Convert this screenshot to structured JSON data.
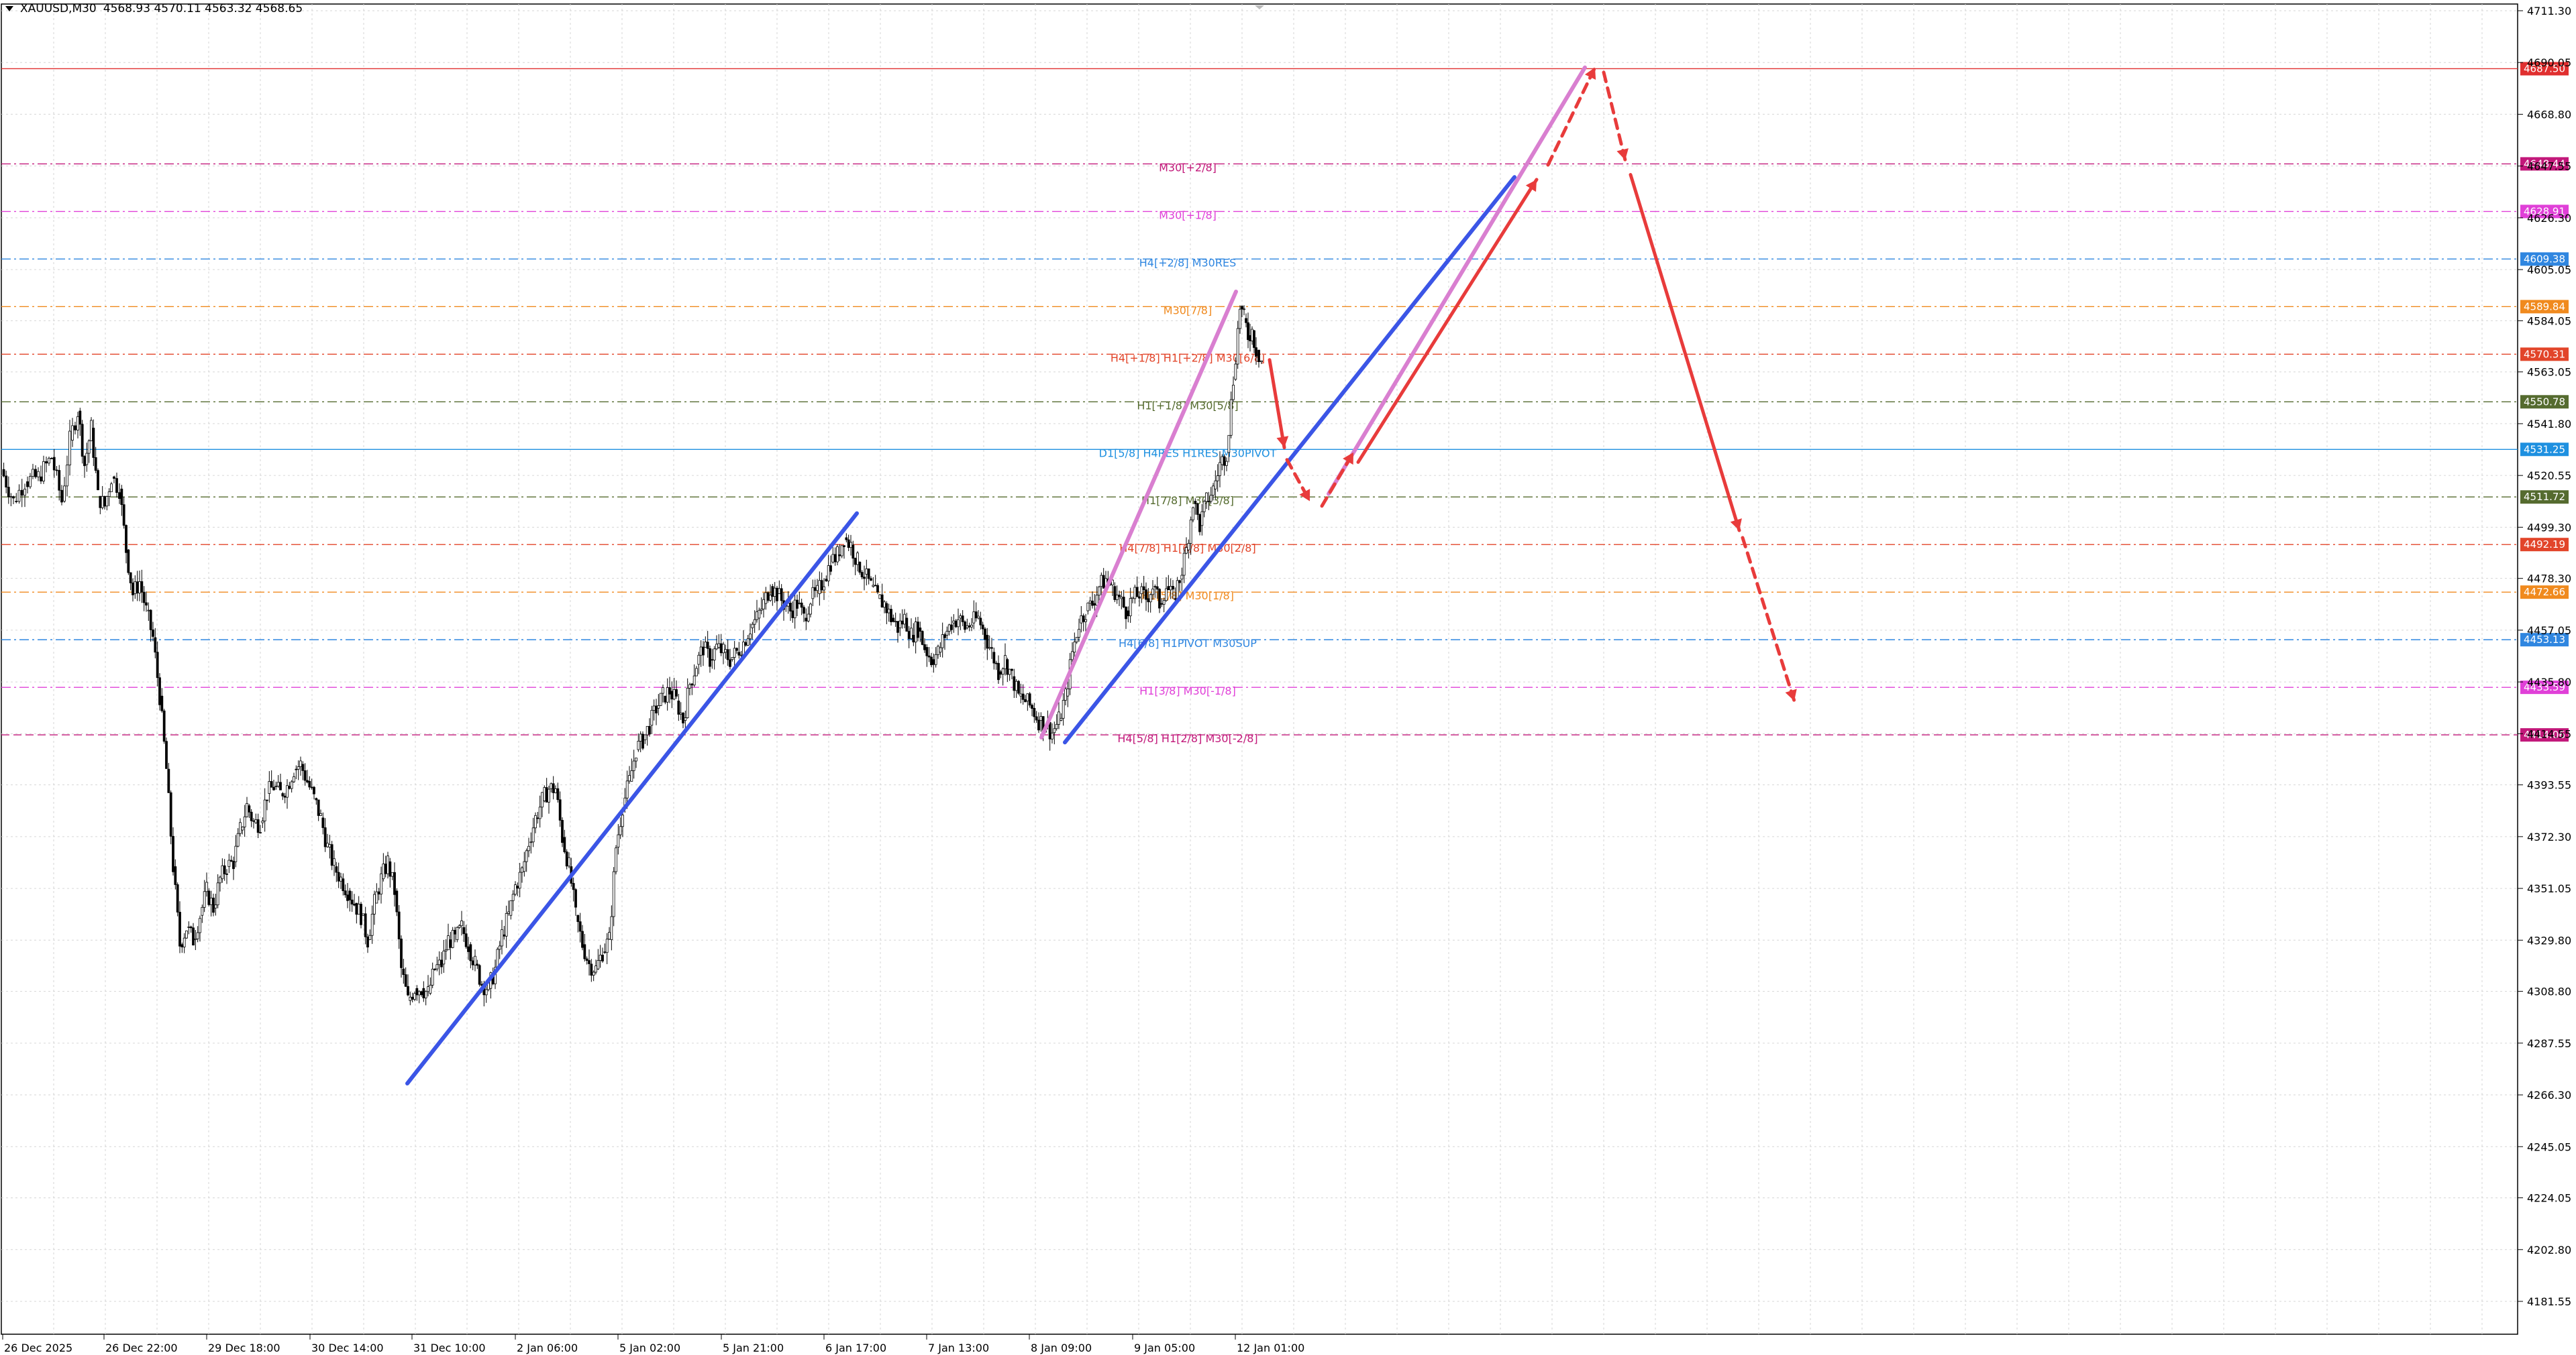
{
  "window": {
    "symbol_info": "XAUUSD,M30",
    "ohlc": "4568.93 4570.11 4563.32 4568.65"
  },
  "colors": {
    "background": "#ffffff",
    "grid": "#d6d6d6",
    "candle": "#000000",
    "trend_blue": "#3b55e6",
    "trend_pink": "#d97fd0",
    "arrow_red": "#e83b3b"
  },
  "chart_data": {
    "type": "candlestick",
    "title": "XAUUSD,M30",
    "ylim": [
      4170,
      4716
    ],
    "price_ticks": [
      "4711.30",
      "4690.05",
      "4668.80",
      "4647.55",
      "4626.30",
      "4605.05",
      "4584.05",
      "4563.05",
      "4541.80",
      "4520.55",
      "4499.30",
      "4478.30",
      "4457.05",
      "4435.80",
      "4414.55",
      "4393.55",
      "4372.30",
      "4351.05",
      "4329.80",
      "4308.80",
      "4287.55",
      "4266.30",
      "4245.05",
      "4224.05",
      "4202.80",
      "4181.55"
    ],
    "time_labels": [
      "26 Dec 2025",
      "26 Dec 22:00",
      "29 Dec 18:00",
      "30 Dec 14:00",
      "31 Dec 10:00",
      "2 Jan 06:00",
      "5 Jan 02:00",
      "5 Jan 21:00",
      "6 Jan 17:00",
      "7 Jan 13:00",
      "8 Jan 09:00",
      "9 Jan 05:00",
      "12 Jan 01:00"
    ],
    "levels": [
      {
        "price": 4687.5,
        "tag": "4687.50",
        "label": "",
        "color": "#e02f2f",
        "style": "solid"
      },
      {
        "price": 4648.44,
        "tag": "4648.44",
        "label": "M30[+2/8]",
        "color": "#c2187a",
        "style": "dashdot"
      },
      {
        "price": 4628.91,
        "tag": "4628.91",
        "label": "M30[+1/8]",
        "color": "#e040d8",
        "style": "dashdot"
      },
      {
        "price": 4609.38,
        "tag": "4609.38",
        "label": "H4[+2/8] M30RES",
        "color": "#2f86e0",
        "style": "dashdot"
      },
      {
        "price": 4589.84,
        "tag": "4589.84",
        "label": "M30[7/8]",
        "color": "#f08a1e",
        "style": "dashdot"
      },
      {
        "price": 4570.31,
        "tag": "4570.31",
        "label": "H4[+1/8] H1[+2/8] M30[6/8]",
        "color": "#e2452a",
        "style": "dashdot"
      },
      {
        "price": 4550.78,
        "tag": "4550.78",
        "label": "H1[+1/8] M30[5/8]",
        "color": "#556b2f",
        "style": "dashdot"
      },
      {
        "price": 4531.25,
        "tag": "4531.25",
        "label": "D1[5/8] H4RES H1RES M30PIVOT",
        "color": "#1e90e0",
        "style": "solid"
      },
      {
        "price": 4511.72,
        "tag": "4511.72",
        "label": "H1[7/8] M30[3/8]",
        "color": "#556b2f",
        "style": "dashdot"
      },
      {
        "price": 4492.19,
        "tag": "4492.19",
        "label": "H4[7/8] H1[6/8] M30[2/8]",
        "color": "#e2452a",
        "style": "dashdot"
      },
      {
        "price": 4472.66,
        "tag": "4472.66",
        "label": "H1[5/8] M30[1/8]",
        "color": "#f08a1e",
        "style": "dashdot"
      },
      {
        "price": 4453.13,
        "tag": "4453.13",
        "label": "H4[6/8] H1PIVOT M30SUP",
        "color": "#2f86e0",
        "style": "dashdot"
      },
      {
        "price": 4433.59,
        "tag": "4433.59",
        "label": "H1[3/8] M30[-1/8]",
        "color": "#e040d8",
        "style": "dashdot"
      },
      {
        "price": 4414.06,
        "tag": "4414.06",
        "label": "H4[5/8] H1[2/8] M30[-2/8]",
        "color": "#c2187a",
        "style": "dashed"
      }
    ],
    "price_path": [
      [
        0,
        4523
      ],
      [
        18,
        4510
      ],
      [
        35,
        4518
      ],
      [
        55,
        4520
      ],
      [
        75,
        4528
      ],
      [
        90,
        4510
      ],
      [
        102,
        4535
      ],
      [
        114,
        4547
      ],
      [
        124,
        4525
      ],
      [
        134,
        4540
      ],
      [
        144,
        4512
      ],
      [
        154,
        4508
      ],
      [
        164,
        4520
      ],
      [
        176,
        4515
      ],
      [
        186,
        4490
      ],
      [
        196,
        4472
      ],
      [
        206,
        4477
      ],
      [
        216,
        4465
      ],
      [
        226,
        4454
      ],
      [
        236,
        4430
      ],
      [
        246,
        4400
      ],
      [
        256,
        4360
      ],
      [
        266,
        4328
      ],
      [
        276,
        4335
      ],
      [
        286,
        4330
      ],
      [
        296,
        4340
      ],
      [
        306,
        4350
      ],
      [
        316,
        4343
      ],
      [
        326,
        4355
      ],
      [
        336,
        4360
      ],
      [
        346,
        4362
      ],
      [
        356,
        4375
      ],
      [
        366,
        4385
      ],
      [
        376,
        4378
      ],
      [
        386,
        4378
      ],
      [
        396,
        4390
      ],
      [
        406,
        4393
      ],
      [
        416,
        4390
      ],
      [
        426,
        4393
      ],
      [
        436,
        4400
      ],
      [
        446,
        4402
      ],
      [
        456,
        4395
      ],
      [
        466,
        4388
      ],
      [
        476,
        4380
      ],
      [
        486,
        4368
      ],
      [
        496,
        4360
      ],
      [
        506,
        4355
      ],
      [
        516,
        4350
      ],
      [
        526,
        4345
      ],
      [
        536,
        4340
      ],
      [
        546,
        4330
      ],
      [
        556,
        4345
      ],
      [
        566,
        4355
      ],
      [
        576,
        4362
      ],
      [
        586,
        4350
      ],
      [
        596,
        4318
      ],
      [
        606,
        4305
      ],
      [
        616,
        4310
      ],
      [
        626,
        4310
      ],
      [
        636,
        4308
      ],
      [
        646,
        4318
      ],
      [
        656,
        4320
      ],
      [
        666,
        4330
      ],
      [
        676,
        4330
      ],
      [
        686,
        4335
      ],
      [
        696,
        4328
      ],
      [
        706,
        4320
      ],
      [
        716,
        4312
      ],
      [
        726,
        4310
      ],
      [
        736,
        4318
      ],
      [
        746,
        4332
      ],
      [
        756,
        4340
      ],
      [
        766,
        4352
      ],
      [
        776,
        4358
      ],
      [
        786,
        4370
      ],
      [
        796,
        4380
      ],
      [
        806,
        4387
      ],
      [
        816,
        4392
      ],
      [
        826,
        4392
      ],
      [
        836,
        4372
      ],
      [
        846,
        4360
      ],
      [
        856,
        4340
      ],
      [
        866,
        4328
      ],
      [
        876,
        4320
      ],
      [
        886,
        4318
      ],
      [
        896,
        4325
      ],
      [
        906,
        4330
      ],
      [
        916,
        4368
      ],
      [
        926,
        4385
      ],
      [
        936,
        4395
      ],
      [
        946,
        4408
      ],
      [
        956,
        4412
      ],
      [
        966,
        4418
      ],
      [
        976,
        4425
      ],
      [
        986,
        4430
      ],
      [
        996,
        4432
      ],
      [
        1006,
        4428
      ],
      [
        1016,
        4420
      ],
      [
        1026,
        4435
      ],
      [
        1036,
        4443
      ],
      [
        1046,
        4450
      ],
      [
        1056,
        4445
      ],
      [
        1066,
        4450
      ],
      [
        1076,
        4448
      ],
      [
        1086,
        4445
      ],
      [
        1096,
        4448
      ],
      [
        1106,
        4452
      ],
      [
        1116,
        4458
      ],
      [
        1126,
        4462
      ],
      [
        1136,
        4468
      ],
      [
        1146,
        4475
      ],
      [
        1156,
        4472
      ],
      [
        1166,
        4468
      ],
      [
        1176,
        4465
      ],
      [
        1186,
        4468
      ],
      [
        1196,
        4462
      ],
      [
        1206,
        4470
      ],
      [
        1216,
        4472
      ],
      [
        1226,
        4478
      ],
      [
        1236,
        4485
      ],
      [
        1246,
        4488
      ],
      [
        1256,
        4495
      ],
      [
        1266,
        4492
      ],
      [
        1276,
        4485
      ],
      [
        1286,
        4480
      ],
      [
        1296,
        4475
      ],
      [
        1306,
        4470
      ],
      [
        1316,
        4468
      ],
      [
        1326,
        4462
      ],
      [
        1336,
        4458
      ],
      [
        1346,
        4462
      ],
      [
        1356,
        4455
      ],
      [
        1366,
        4458
      ],
      [
        1376,
        4450
      ],
      [
        1386,
        4445
      ],
      [
        1396,
        4448
      ],
      [
        1406,
        4455
      ],
      [
        1416,
        4460
      ],
      [
        1426,
        4462
      ],
      [
        1436,
        4458
      ],
      [
        1446,
        4460
      ],
      [
        1456,
        4462
      ],
      [
        1466,
        4455
      ],
      [
        1476,
        4448
      ],
      [
        1486,
        4440
      ],
      [
        1496,
        4445
      ],
      [
        1506,
        4438
      ],
      [
        1516,
        4430
      ],
      [
        1526,
        4428
      ],
      [
        1536,
        4425
      ],
      [
        1546,
        4420
      ],
      [
        1556,
        4418
      ],
      [
        1566,
        4415
      ],
      [
        1576,
        4420
      ],
      [
        1586,
        4430
      ],
      [
        1596,
        4448
      ],
      [
        1606,
        4460
      ],
      [
        1616,
        4465
      ],
      [
        1626,
        4468
      ],
      [
        1636,
        4475
      ],
      [
        1646,
        4478
      ],
      [
        1656,
        4475
      ],
      [
        1666,
        4470
      ],
      [
        1676,
        4465
      ],
      [
        1686,
        4470
      ],
      [
        1696,
        4472
      ],
      [
        1706,
        4470
      ],
      [
        1716,
        4475
      ],
      [
        1726,
        4468
      ],
      [
        1736,
        4475
      ],
      [
        1746,
        4470
      ],
      [
        1756,
        4478
      ],
      [
        1766,
        4490
      ],
      [
        1776,
        4510
      ],
      [
        1786,
        4500
      ],
      [
        1796,
        4510
      ],
      [
        1806,
        4515
      ],
      [
        1816,
        4525
      ],
      [
        1826,
        4530
      ],
      [
        1836,
        4560
      ],
      [
        1846,
        4590
      ],
      [
        1852,
        4585
      ],
      [
        1858,
        4578
      ],
      [
        1864,
        4580
      ],
      [
        1870,
        4572
      ],
      [
        1878,
        4568
      ]
    ],
    "trend_lines": [
      {
        "name": "",
        "color": "#3b55e6",
        "dashed": false,
        "arrow": false,
        "points": [
          [
            605,
            4271
          ],
          [
            1275,
            4505
          ]
        ]
      },
      {
        "name": "",
        "color": "#3b55e6",
        "dashed": false,
        "arrow": false,
        "points": [
          [
            1585,
            4411
          ],
          [
            2255,
            4643
          ]
        ]
      },
      {
        "name": "",
        "color": "#d97fd0",
        "dashed": false,
        "arrow": false,
        "points": [
          [
            1550,
            4413
          ],
          [
            1840,
            4596
          ]
        ]
      },
      {
        "name": "",
        "color": "#d97fd0",
        "dashed": false,
        "arrow": false,
        "points": [
          [
            1978,
            4513
          ],
          [
            2360,
            4688
          ]
        ]
      }
    ],
    "forecast_arrows": [
      {
        "color": "#e83b3b",
        "dashed": false,
        "points": [
          [
            1890,
            4568
          ],
          [
            1912,
            4532
          ]
        ]
      },
      {
        "color": "#e83b3b",
        "dashed": true,
        "points": [
          [
            1916,
            4527
          ],
          [
            1950,
            4510
          ]
        ]
      },
      {
        "color": "#e83b3b",
        "dashed": true,
        "points": [
          [
            1968,
            4508
          ],
          [
            2015,
            4530
          ]
        ]
      },
      {
        "color": "#e83b3b",
        "dashed": false,
        "points": [
          [
            2022,
            4526
          ],
          [
            2288,
            4642
          ]
        ]
      },
      {
        "color": "#e83b3b",
        "dashed": true,
        "points": [
          [
            2305,
            4648
          ],
          [
            2375,
            4688
          ]
        ]
      },
      {
        "color": "#e83b3b",
        "dashed": true,
        "points": [
          [
            2388,
            4686
          ],
          [
            2420,
            4650
          ]
        ]
      },
      {
        "color": "#e83b3b",
        "dashed": false,
        "points": [
          [
            2428,
            4644
          ],
          [
            2590,
            4498
          ]
        ]
      },
      {
        "color": "#e83b3b",
        "dashed": true,
        "points": [
          [
            2595,
            4495
          ],
          [
            2672,
            4428
          ]
        ]
      }
    ]
  }
}
